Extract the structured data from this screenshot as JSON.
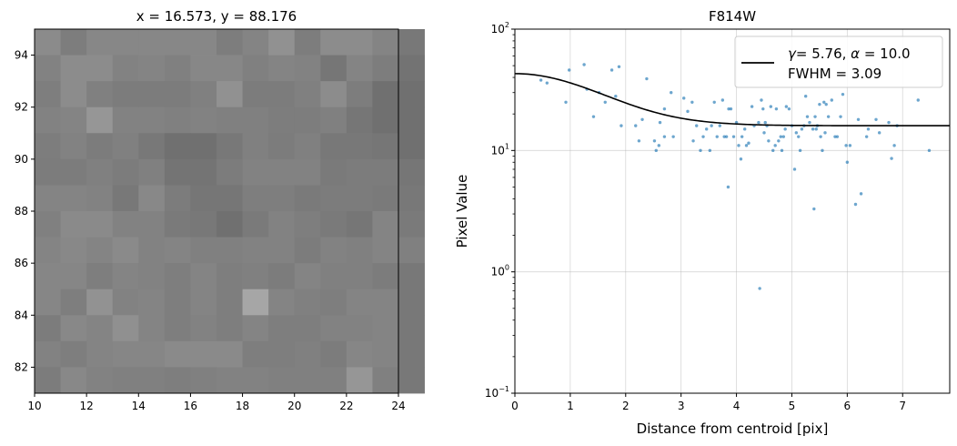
{
  "chart_data": [
    {
      "type": "heatmap",
      "title": "x = 16.573, y = 88.176",
      "xlabel": "",
      "ylabel": "",
      "xlim": [
        10,
        24
      ],
      "ylim": [
        81,
        95
      ],
      "x_ticks": [
        "10",
        "12",
        "14",
        "16",
        "18",
        "20",
        "22",
        "24"
      ],
      "y_ticks": [
        "82",
        "84",
        "86",
        "88",
        "90",
        "92",
        "94"
      ],
      "colormap": "gray",
      "grid_x_start": 10,
      "grid_y_top": 95,
      "rows": [
        [
          139,
          125,
          135,
          135,
          135,
          135,
          135,
          125,
          132,
          145,
          125,
          140,
          140,
          132,
          120
        ],
        [
          130,
          140,
          140,
          130,
          132,
          128,
          135,
          135,
          128,
          132,
          130,
          118,
          132,
          125,
          115
        ],
        [
          126,
          140,
          128,
          124,
          124,
          124,
          128,
          145,
          124,
          124,
          128,
          140,
          125,
          112,
          112
        ],
        [
          130,
          132,
          150,
          130,
          130,
          128,
          130,
          128,
          128,
          125,
          125,
          128,
          118,
          112,
          112
        ],
        [
          125,
          130,
          124,
          128,
          120,
          112,
          112,
          120,
          128,
          124,
          128,
          120,
          120,
          118,
          112
        ],
        [
          124,
          124,
          128,
          124,
          128,
          116,
          116,
          124,
          130,
          130,
          130,
          122,
          124,
          124,
          118
        ],
        [
          132,
          132,
          130,
          120,
          136,
          124,
          118,
          118,
          126,
          126,
          122,
          124,
          124,
          122,
          120
        ],
        [
          128,
          138,
          138,
          130,
          130,
          122,
          120,
          112,
          122,
          130,
          126,
          122,
          118,
          132,
          122
        ],
        [
          132,
          136,
          132,
          138,
          130,
          132,
          128,
          128,
          130,
          130,
          124,
          130,
          128,
          132,
          128
        ],
        [
          134,
          134,
          126,
          132,
          130,
          126,
          132,
          126,
          128,
          124,
          132,
          128,
          128,
          124,
          120
        ],
        [
          134,
          126,
          146,
          130,
          132,
          126,
          132,
          126,
          166,
          132,
          128,
          126,
          132,
          132,
          120
        ],
        [
          124,
          136,
          132,
          144,
          132,
          126,
          130,
          126,
          132,
          126,
          126,
          130,
          130,
          132,
          120
        ],
        [
          130,
          126,
          132,
          134,
          134,
          138,
          138,
          138,
          126,
          126,
          128,
          124,
          134,
          132,
          120
        ],
        [
          124,
          136,
          130,
          128,
          128,
          126,
          128,
          130,
          130,
          128,
          128,
          128,
          150,
          128,
          120
        ]
      ]
    },
    {
      "type": "scatter",
      "title": "F814W",
      "xlabel": "Distance from centroid [pix]",
      "ylabel": "Pixel Value",
      "xlim": [
        0,
        7.85
      ],
      "ylim": [
        0.1,
        100
      ],
      "yscale": "log",
      "grid": true,
      "legend_position": "top-right",
      "x_ticks": [
        "0",
        "1",
        "2",
        "3",
        "4",
        "5",
        "6",
        "7"
      ],
      "y_ticks": [
        {
          "base": "10",
          "exp": "2",
          "value": 100
        },
        {
          "base": "10",
          "exp": "1",
          "value": 10
        },
        {
          "base": "10",
          "exp": "0",
          "value": 1
        },
        {
          "base": "10",
          "exp": "−1",
          "value": 0.1
        }
      ],
      "point_color": "#1f77b4",
      "line_color": "#000000",
      "legend": {
        "gamma_label": "γ",
        "line1_rest": "= 5.76, ",
        "alpha_label": "α",
        "line1_end": " = 10.0",
        "line2": "FWHM = 3.09"
      },
      "fit": {
        "model": "moffat_plus_background",
        "gamma": 5.76,
        "alpha": 10.0,
        "fwhm": 3.09,
        "amplitude": 27,
        "background": 16
      },
      "points": [
        [
          0.47,
          38
        ],
        [
          0.58,
          36
        ],
        [
          0.92,
          25
        ],
        [
          0.98,
          46
        ],
        [
          1.25,
          51
        ],
        [
          1.3,
          32
        ],
        [
          1.42,
          19
        ],
        [
          1.52,
          30
        ],
        [
          1.63,
          25
        ],
        [
          1.75,
          46
        ],
        [
          1.82,
          28
        ],
        [
          1.88,
          49
        ],
        [
          1.92,
          16
        ],
        [
          2.18,
          16
        ],
        [
          2.24,
          12
        ],
        [
          2.3,
          18
        ],
        [
          2.38,
          39
        ],
        [
          2.52,
          12
        ],
        [
          2.55,
          10
        ],
        [
          2.6,
          11
        ],
        [
          2.62,
          17
        ],
        [
          2.7,
          13
        ],
        [
          2.7,
          22
        ],
        [
          2.82,
          30
        ],
        [
          2.86,
          13
        ],
        [
          3.05,
          27
        ],
        [
          3.12,
          21
        ],
        [
          3.2,
          25
        ],
        [
          3.22,
          12
        ],
        [
          3.28,
          16
        ],
        [
          3.35,
          10
        ],
        [
          3.4,
          13
        ],
        [
          3.46,
          15
        ],
        [
          3.52,
          10
        ],
        [
          3.55,
          16
        ],
        [
          3.6,
          25
        ],
        [
          3.65,
          13
        ],
        [
          3.7,
          16
        ],
        [
          3.75,
          26
        ],
        [
          3.78,
          13
        ],
        [
          3.82,
          13
        ],
        [
          3.85,
          5
        ],
        [
          3.86,
          22
        ],
        [
          3.9,
          22
        ],
        [
          3.95,
          13
        ],
        [
          4.0,
          17
        ],
        [
          4.04,
          11
        ],
        [
          4.08,
          8.5
        ],
        [
          4.1,
          13
        ],
        [
          4.15,
          15
        ],
        [
          4.18,
          11
        ],
        [
          4.22,
          11.5
        ],
        [
          4.28,
          23
        ],
        [
          4.32,
          16
        ],
        [
          4.4,
          17
        ],
        [
          4.42,
          0.73
        ],
        [
          4.45,
          26
        ],
        [
          4.48,
          22
        ],
        [
          4.5,
          14
        ],
        [
          4.52,
          17
        ],
        [
          4.55,
          16
        ],
        [
          4.58,
          12
        ],
        [
          4.62,
          23
        ],
        [
          4.66,
          10
        ],
        [
          4.7,
          11
        ],
        [
          4.72,
          22
        ],
        [
          4.76,
          12
        ],
        [
          4.8,
          13
        ],
        [
          4.82,
          10
        ],
        [
          4.85,
          13
        ],
        [
          4.88,
          15
        ],
        [
          4.9,
          23
        ],
        [
          4.95,
          22
        ],
        [
          5.0,
          16
        ],
        [
          5.05,
          7
        ],
        [
          5.08,
          14
        ],
        [
          5.12,
          13
        ],
        [
          5.15,
          10
        ],
        [
          5.18,
          15
        ],
        [
          5.22,
          16
        ],
        [
          5.25,
          28
        ],
        [
          5.28,
          19
        ],
        [
          5.32,
          17
        ],
        [
          5.38,
          15
        ],
        [
          5.4,
          3.3
        ],
        [
          5.42,
          19
        ],
        [
          5.44,
          15
        ],
        [
          5.46,
          16
        ],
        [
          5.5,
          24
        ],
        [
          5.52,
          13
        ],
        [
          5.55,
          10
        ],
        [
          5.58,
          25
        ],
        [
          5.6,
          14
        ],
        [
          5.62,
          24
        ],
        [
          5.66,
          19
        ],
        [
          5.72,
          26
        ],
        [
          5.78,
          13
        ],
        [
          5.82,
          13
        ],
        [
          5.88,
          19
        ],
        [
          5.92,
          29
        ],
        [
          5.98,
          11
        ],
        [
          6.0,
          8
        ],
        [
          6.05,
          11
        ],
        [
          6.15,
          3.6
        ],
        [
          6.2,
          18
        ],
        [
          6.25,
          4.4
        ],
        [
          6.35,
          13
        ],
        [
          6.38,
          15
        ],
        [
          6.52,
          18
        ],
        [
          6.58,
          14
        ],
        [
          6.75,
          17
        ],
        [
          6.8,
          8.6
        ],
        [
          6.85,
          11
        ],
        [
          6.9,
          16
        ],
        [
          7.28,
          26
        ],
        [
          7.48,
          10
        ]
      ]
    }
  ]
}
